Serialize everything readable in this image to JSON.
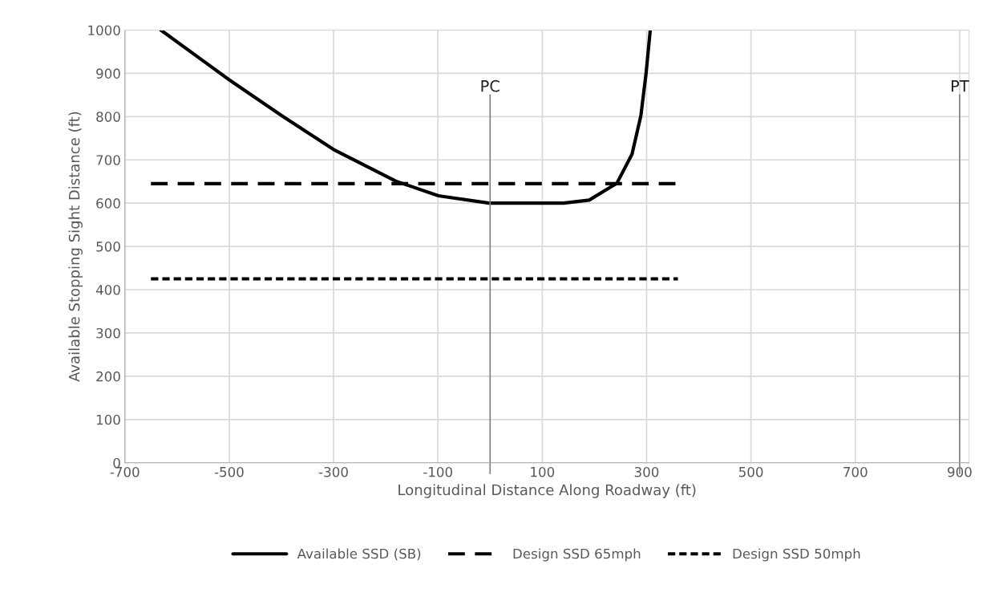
{
  "chart_data": {
    "type": "line",
    "xlabel": "Longitudinal Distance Along Roadway (ft)",
    "ylabel": "Available Stopping Sight Distance (ft)",
    "xlim": [
      -700,
      918
    ],
    "xticks": [
      -700,
      -500,
      -300,
      -100,
      100,
      300,
      500,
      700,
      900
    ],
    "ylim": [
      0,
      1000
    ],
    "yticks": [
      0,
      100,
      200,
      300,
      400,
      500,
      600,
      700,
      800,
      900,
      1000
    ],
    "grid": true,
    "legend": "bottom",
    "marker": "none",
    "series": [
      {
        "name": "Available SSD (SB)",
        "color": "#000000",
        "line_style": "solid",
        "x": [
          -631,
          -500,
          -398,
          -300,
          -181,
          -99,
          -2,
          141,
          190,
          243,
          272,
          289,
          299,
          307
        ],
        "values": [
          1000,
          885,
          801,
          724,
          651,
          617,
          600,
          600,
          607,
          646,
          713,
          802,
          900,
          1000
        ]
      },
      {
        "name": "Design SSD 65mph",
        "color": "#000000",
        "line_style": "dashed",
        "x": [
          -650,
          360
        ],
        "values": [
          645,
          645
        ]
      },
      {
        "name": "Design SSD 50mph",
        "color": "#000000",
        "line_style": "dotted",
        "x": [
          -650,
          360
        ],
        "values": [
          425,
          425
        ]
      }
    ],
    "ref_lines": [
      {
        "axis": "x",
        "value": 0,
        "label": "PC",
        "color": "#7f7f7f"
      },
      {
        "axis": "x",
        "value": 900,
        "label": "PT",
        "color": "#7f7f7f"
      }
    ]
  }
}
